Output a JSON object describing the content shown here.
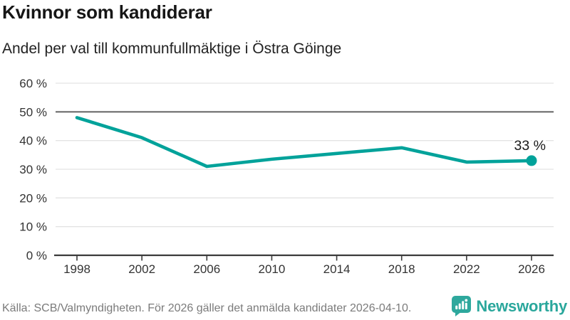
{
  "header": {
    "title": "Kvinnor som kandiderar",
    "subtitle": "Andel per val till kommunfullmäktige i Östra Göinge"
  },
  "chart_data": {
    "type": "line",
    "title": "Kvinnor som kandiderar",
    "subtitle": "Andel per val till kommunfullmäktige i Östra Göinge",
    "categories": [
      "1998",
      "2002",
      "2006",
      "2010",
      "2014",
      "2018",
      "2022",
      "2026"
    ],
    "values": [
      48,
      41,
      31,
      33.5,
      35.5,
      37.5,
      32.5,
      33
    ],
    "ylim": [
      0,
      60
    ],
    "yticks": [
      0,
      10,
      20,
      30,
      40,
      50,
      60
    ],
    "ytick_suffix": " %",
    "grid": true,
    "reference_line_y": 50,
    "end_point_label": "33 %",
    "legend": "none"
  },
  "colors": {
    "line": "#00a29a",
    "point": "#00a29a",
    "grid": "#e3e3e3",
    "reference_line": "#6b6b6b",
    "axis": "#3a3a3a",
    "tick_label": "#333333",
    "end_label": "#1a1a1a",
    "brand": "#2aa79c"
  },
  "footer": {
    "source": "Källa: SCB/Valmyndigheten. För 2026 gäller det anmälda kandidater 2026-04-10.",
    "brand": "Newsworthy"
  }
}
